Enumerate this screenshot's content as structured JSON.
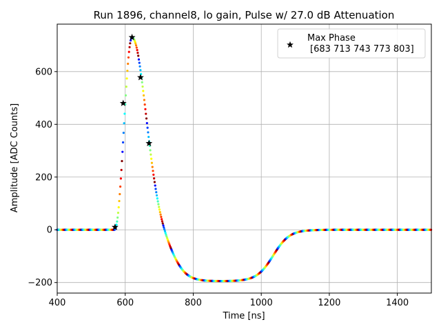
{
  "chart_data": {
    "type": "scatter",
    "title": "Run 1896, channel8, lo gain, Pulse w/ 27.0 dB Attenuation",
    "xlabel": "Time [ns]",
    "ylabel": "Amplitude [ADC Counts]",
    "xlim": [
      400,
      1500
    ],
    "ylim": [
      -240,
      780
    ],
    "xticks": [
      400,
      600,
      800,
      1000,
      1200,
      1400
    ],
    "yticks": [
      -200,
      0,
      200,
      400,
      600
    ],
    "ytick_labels": [
      "−200",
      "0",
      "200",
      "400",
      "600"
    ],
    "grid": true,
    "legend": {
      "position": "top-right",
      "label_line1": "Max Phase",
      "label_line2": "[683 713 743 773 803]"
    },
    "pulse_waveform": {
      "description_series": "colored dots sampled along pulse, color cycles by phase",
      "baseline": 0,
      "rise_start": 568,
      "peak_time": 620,
      "peak_value": 730,
      "undershoot_value": -195,
      "undershoot_start": 850,
      "undershoot_end": 975,
      "recovery_end": 1180,
      "colors": [
        "#0000ff",
        "#00ffff",
        "#ffff00",
        "#ff0000",
        "#800000"
      ]
    },
    "series": [
      {
        "name": "Max Phase",
        "marker": "star",
        "x": [
          570,
          594,
          620,
          645,
          670
        ],
        "y": [
          10,
          480,
          730,
          578,
          328
        ]
      }
    ]
  }
}
